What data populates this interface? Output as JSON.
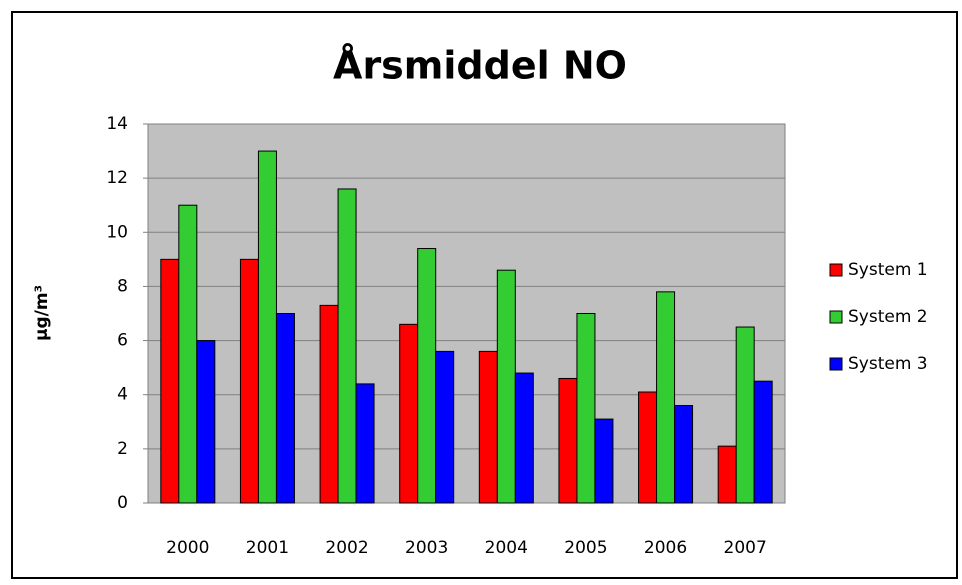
{
  "chart_data": {
    "type": "bar",
    "title": "Årsmiddel NO",
    "y_label": "µg/m³",
    "categories": [
      "2000",
      "2001",
      "2002",
      "2003",
      "2004",
      "2005",
      "2006",
      "2007"
    ],
    "series": [
      {
        "name": "System 1",
        "color": "#ff0000",
        "values": [
          9,
          9,
          7.3,
          6.6,
          5.6,
          4.6,
          4.1,
          2.1
        ]
      },
      {
        "name": "System 2",
        "color": "#33cc33",
        "values": [
          11,
          13,
          11.6,
          9.4,
          8.6,
          7,
          7.8,
          6.5
        ]
      },
      {
        "name": "System 3",
        "color": "#0000ff",
        "values": [
          6,
          7,
          4.4,
          5.6,
          4.8,
          3.1,
          3.6,
          4.5
        ]
      }
    ],
    "ylim": [
      0,
      14
    ],
    "yticks": [
      0,
      2,
      4,
      6,
      8,
      10,
      12,
      14
    ],
    "grid": true,
    "legend": "right",
    "plot_background": "#c0c0c0"
  }
}
